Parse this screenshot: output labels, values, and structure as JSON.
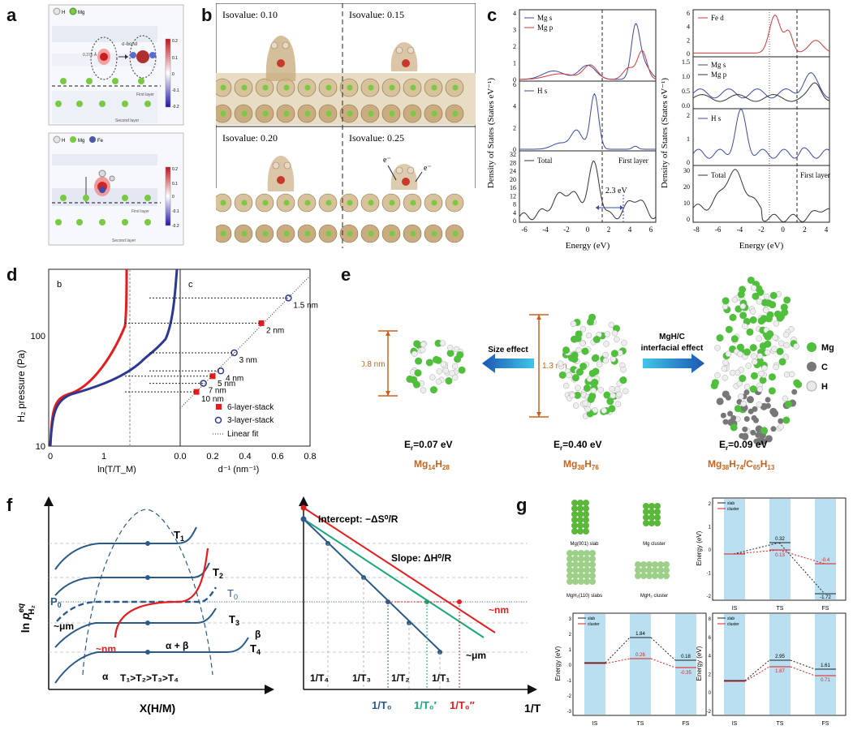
{
  "panel_labels": {
    "a": "a",
    "b": "b",
    "c": "c",
    "d": "d",
    "e": "e",
    "f": "f",
    "g": "g"
  },
  "colors": {
    "red": "#e31d1d",
    "navy": "#2b3894",
    "blue": "#2a5a8a",
    "green": "#15a87a",
    "mg": "#7ac943",
    "orange": "#c8621a"
  },
  "panel_a": {
    "top": {
      "legend_h": "H",
      "legend_mg": "Mg",
      "layer1": "First layer",
      "layer2": "Second layer",
      "dist": "0.376 Å",
      "label_right": "σ-bond",
      "colorbar": [
        "0.2",
        "0.1",
        "0",
        "-0.1",
        "-0.2"
      ]
    },
    "bottom": {
      "legend_h": "H",
      "legend_mg": "Mg",
      "legend_fe": "Fe",
      "layer1": "First layer",
      "layer2": "Second layer",
      "colorbar": [
        "0.2",
        "0.1",
        "0",
        "-0.1",
        "-0.2"
      ]
    }
  },
  "panel_b": {
    "isovalues": [
      "Isovalue: 0.10",
      "Isovalue: 0.15",
      "Isovalue: 0.20",
      "Isovalue: 0.25"
    ],
    "electron": "e⁻"
  },
  "panel_c": {
    "ylabel": "Density of States (States eV⁻¹)",
    "xlabel": "Energy (eV)",
    "left": {
      "xticks": [
        "-6",
        "-4",
        "-2",
        "0",
        "2",
        "4",
        "6"
      ],
      "sub1": {
        "legend": [
          "Mg s",
          "Mg p"
        ],
        "yticks": [
          "0",
          "1",
          "2",
          "3",
          "4"
        ]
      },
      "sub2": {
        "legend": [
          "H s"
        ],
        "yticks": [
          "0",
          "2",
          "4",
          "6"
        ]
      },
      "sub3": {
        "legend": [
          "Total"
        ],
        "yticks": [
          "0",
          "4",
          "8",
          "12",
          "16",
          "20",
          "24",
          "28",
          "32"
        ],
        "note": "First layer",
        "gap": "2.3 eV"
      }
    },
    "right": {
      "xticks": [
        "-8",
        "-6",
        "-4",
        "-2",
        "0",
        "2",
        "4"
      ],
      "sub1": {
        "legend": [
          "Fe d"
        ],
        "yticks": [
          "0",
          "2",
          "4",
          "6"
        ]
      },
      "sub2": {
        "legend": [
          "Mg s",
          "Mg p"
        ],
        "yticks": [
          "0.0",
          "0.5",
          "1.0",
          "1.5"
        ]
      },
      "sub3": {
        "legend": [
          "H s"
        ],
        "yticks": [
          "0",
          "1",
          "2"
        ]
      },
      "sub4": {
        "legend": [
          "Total"
        ],
        "yticks": [
          "0",
          "10",
          "20",
          "30"
        ],
        "note": "First layer"
      }
    }
  },
  "panel_d": {
    "ylabel": "H₂ pressure  (Pa)",
    "yticks": [
      "10",
      "100"
    ],
    "xlabel_left": "ln(T/T_M)",
    "xlabel_right": "d⁻¹  (nm⁻¹)",
    "xticks_left": [
      "0",
      "1"
    ],
    "xticks_right": [
      "0.0",
      "0.2",
      "0.4",
      "0.6",
      "0.8"
    ],
    "region_b": "b",
    "region_c": "c",
    "sizes": [
      "1.5 nm",
      "2 nm",
      "3 nm",
      "4 nm",
      "5 nm",
      "7 nm",
      "10 nm"
    ],
    "legend": [
      "6-layer-stack",
      "3-layer-stack",
      "Linear fit"
    ]
  },
  "chart_data": {
    "type": "scatter",
    "title": "",
    "xlabel": "d⁻¹  (nm⁻¹)",
    "ylabel": "H₂ pressure  (Pa)",
    "yscale": "log",
    "xlim": [
      0.0,
      0.8
    ],
    "ylim": [
      10,
      400
    ],
    "series": [
      {
        "name": "6-layer-stack",
        "points": [
          {
            "label": "2 nm",
            "x": 0.5,
            "y": 130
          },
          {
            "label": "5 nm",
            "x": 0.2,
            "y": 43
          },
          {
            "label": "10 nm",
            "x": 0.1,
            "y": 31
          }
        ]
      },
      {
        "name": "3-layer-stack",
        "points": [
          {
            "label": "1.5 nm",
            "x": 0.667,
            "y": 220
          },
          {
            "label": "3 nm",
            "x": 0.333,
            "y": 70
          },
          {
            "label": "4 nm",
            "x": 0.25,
            "y": 48
          },
          {
            "label": "7 nm",
            "x": 0.143,
            "y": 37
          }
        ]
      },
      {
        "name": "Linear fit",
        "points": [
          {
            "x": 0.0,
            "y": 22
          },
          {
            "x": 0.8,
            "y": 350
          }
        ]
      }
    ]
  },
  "panel_e": {
    "size_small": "0.8 nm",
    "size_mid": "1.3 nm",
    "arrow_left": "Size effect",
    "arrow_right_1": "MgH/C",
    "arrow_right_2": "interfacial effect",
    "energies": [
      "E",
      "E",
      "E"
    ],
    "energy_vals": [
      "=0.07 eV",
      "=0.40 eV",
      "=0.09 eV"
    ],
    "formula_1": {
      "a": "Mg",
      "b": "14",
      "c": "H",
      "d": "28"
    },
    "formula_2": {
      "a": "Mg",
      "b": "38",
      "c": "H",
      "d": "76"
    },
    "formula_3": {
      "a": "Mg",
      "b": "38",
      "c": "H",
      "d": "74",
      "e": "/C",
      "f": "65",
      "g": "H",
      "h": "13"
    },
    "legend": [
      "Mg",
      "C",
      "H"
    ]
  },
  "panel_f": {
    "left": {
      "ylabel_ln": "ln ",
      "ylabel_p": "p",
      "ylabel_sup": "eq",
      "ylabel_sub": "H₂",
      "xlabel": "X(H/M)",
      "T1": "T",
      "T1s": "1",
      "T2": "T",
      "T2s": "2",
      "T0": "T",
      "T0s": "0",
      "T3": "T",
      "T3s": "3",
      "T4": "T",
      "T4s": "4",
      "P0": "P",
      "P0s": "0",
      "um": "~μm",
      "nm": "~nm",
      "ab": "α + β",
      "alpha": "α",
      "beta": "β",
      "order": "T₁>T₂>T₃>T₄"
    },
    "right": {
      "intercept": "Intercept: −ΔS⁰/R",
      "slope": "Slope: ΔH⁰/R",
      "nm": "~nm",
      "um": "~μm",
      "ticks_top": [
        "1/T₄",
        "1/T₃",
        "1/T₂",
        "1/T₁"
      ],
      "ticks_bottom": [
        "1/T₀",
        "1/T₀′",
        "1/T₀″"
      ],
      "xlabel": "1/T"
    }
  },
  "panel_g": {
    "structures": [
      "Mg(001) slab",
      "Mg cluster",
      "MgH₂(110) slabs",
      "MgH₂ cluster"
    ],
    "legend": [
      "slab",
      "cluster"
    ],
    "ylabel": "Energy (eV)",
    "xticks": [
      "IS",
      "TS",
      "FS"
    ],
    "tr": {
      "yticks": [
        "2",
        "1",
        "0",
        "-1",
        "-2"
      ],
      "vals": [
        "0.32",
        "0.13",
        "-0.4",
        "-1.72"
      ]
    },
    "bl": {
      "yticks": [
        "3",
        "2",
        "1",
        "0",
        "-1",
        "-2",
        "-3"
      ],
      "vals": [
        "1.84",
        "0.26",
        "0.18",
        "-0.35"
      ]
    },
    "br": {
      "yticks": [
        "8",
        "6",
        "4",
        "2",
        "0",
        "-2"
      ],
      "vals": [
        "2.95",
        "1.87",
        "1.61",
        "0.71"
      ]
    }
  }
}
